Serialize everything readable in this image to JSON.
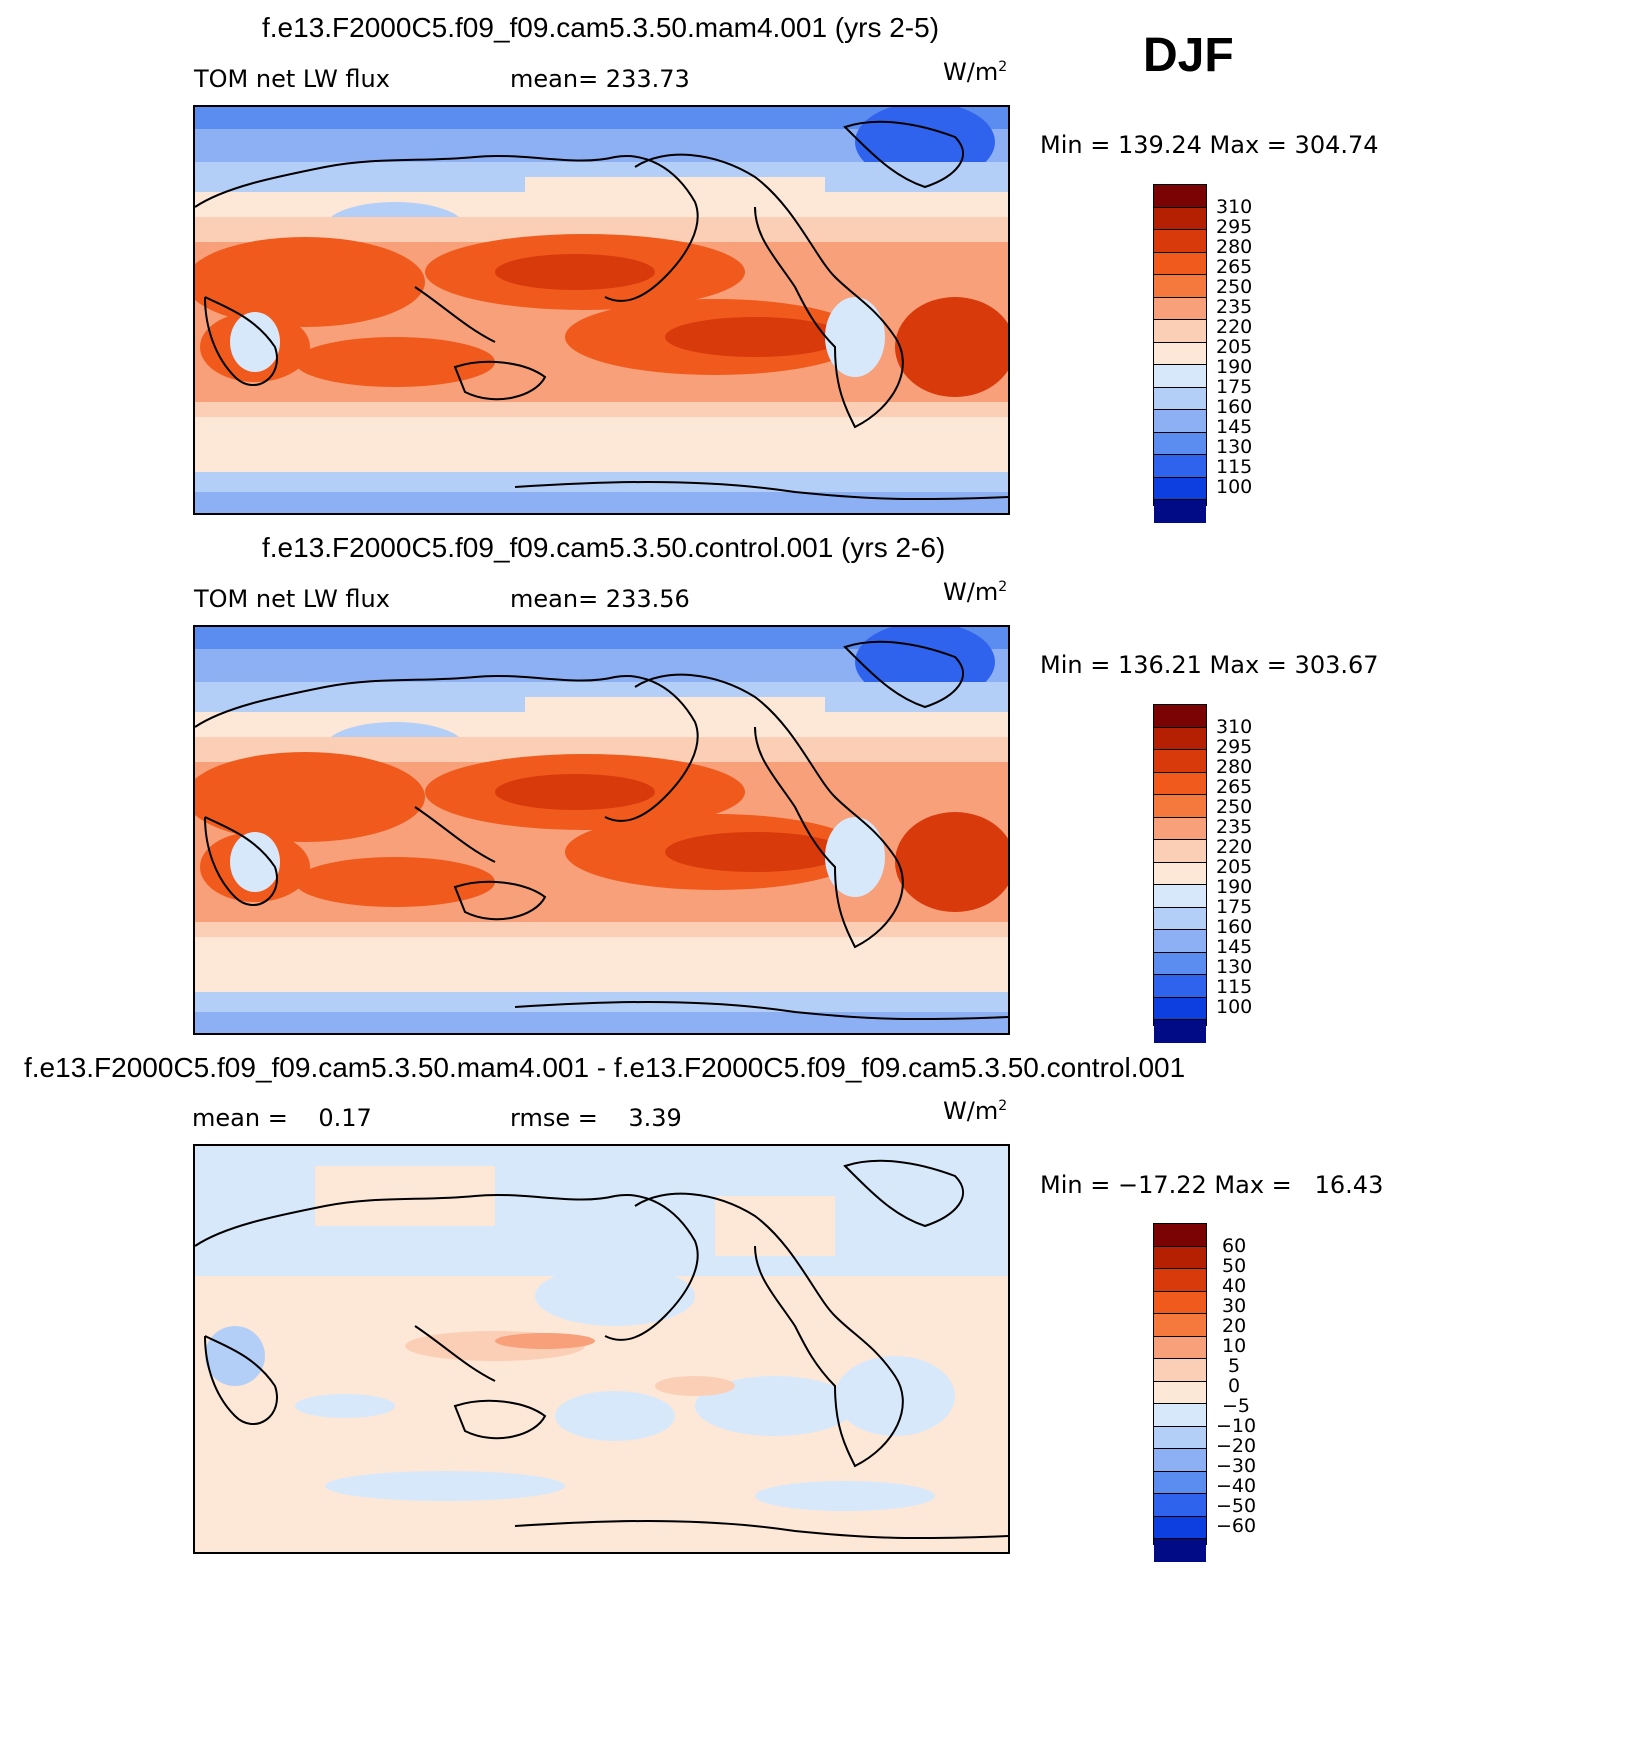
{
  "season": "DJF",
  "units_text": "W/m",
  "units_exp": "2",
  "panels": [
    {
      "title": "f.e13.F2000C5.f09_f09.cam5.3.50.mam4.001 (yrs 2-5)",
      "left_label": "TOM net LW flux",
      "right_label": "mean= 233.73",
      "minmax": "Min = 139.24 Max = 304.74",
      "cb_labels": [
        "310",
        "295",
        "280",
        "265",
        "250",
        "235",
        "220",
        "205",
        "190",
        "175",
        "160",
        "145",
        "130",
        "115",
        "100"
      ]
    },
    {
      "title": "f.e13.F2000C5.f09_f09.cam5.3.50.control.001 (yrs 2-6)",
      "left_label": "TOM net LW flux",
      "right_label": "mean= 233.56",
      "minmax": "Min = 136.21 Max = 303.67",
      "cb_labels": [
        "310",
        "295",
        "280",
        "265",
        "250",
        "235",
        "220",
        "205",
        "190",
        "175",
        "160",
        "145",
        "130",
        "115",
        "100"
      ]
    },
    {
      "title": "f.e13.F2000C5.f09_f09.cam5.3.50.mam4.001 - f.e13.F2000C5.f09_f09.cam5.3.50.control.001",
      "left_label": "mean =    0.17",
      "right_label": "rmse =    3.39",
      "minmax": "Min = −17.22 Max =   16.43",
      "cb_labels": [
        "60",
        "50",
        "40",
        "30",
        "20",
        "10",
        "5",
        "0",
        "−5",
        "−10",
        "−20",
        "−30",
        "−40",
        "−50",
        "−60"
      ]
    }
  ],
  "colors": {
    "colorbar": [
      "#7a0403",
      "#b52003",
      "#d83a0b",
      "#f05a1c",
      "#f5793d",
      "#f7a07a",
      "#fbcfb6",
      "#fde8d8",
      "#d7e8fa",
      "#b4cff7",
      "#8db0f4",
      "#5b8cf0",
      "#2f63ee",
      "#0d3ee0",
      "#0522b8",
      "#000b85"
    ],
    "land_outline": "#000000"
  }
}
